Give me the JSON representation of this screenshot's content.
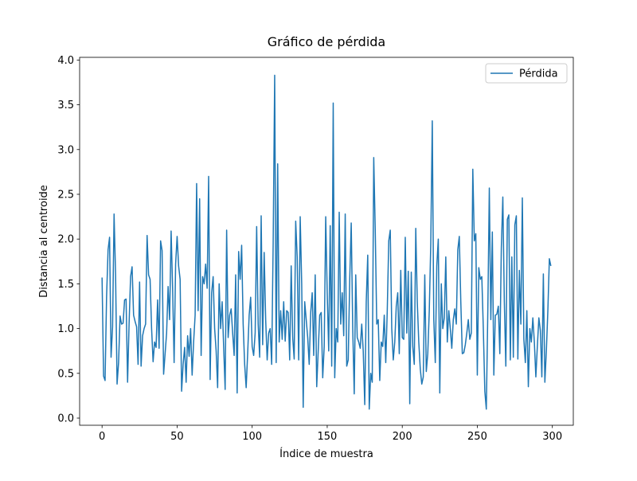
{
  "chart_data": {
    "type": "line",
    "title": "Gráfico de pérdida",
    "x_label": "Índice de muestra",
    "y_label": "Distancia al centroide",
    "x": [
      0,
      1,
      2,
      3,
      4,
      5,
      6,
      7,
      8,
      9,
      10,
      11,
      12,
      13,
      14,
      15,
      16,
      17,
      18,
      19,
      20,
      21,
      22,
      23,
      24,
      25,
      26,
      27,
      28,
      29,
      30,
      31,
      32,
      33,
      34,
      35,
      36,
      37,
      38,
      39,
      40,
      41,
      42,
      43,
      44,
      45,
      46,
      47,
      48,
      49,
      50,
      51,
      52,
      53,
      54,
      55,
      56,
      57,
      58,
      59,
      60,
      61,
      62,
      63,
      64,
      65,
      66,
      67,
      68,
      69,
      70,
      71,
      72,
      73,
      74,
      75,
      76,
      77,
      78,
      79,
      80,
      81,
      82,
      83,
      84,
      85,
      86,
      87,
      88,
      89,
      90,
      91,
      92,
      93,
      94,
      95,
      96,
      97,
      98,
      99,
      100,
      101,
      102,
      103,
      104,
      105,
      106,
      107,
      108,
      109,
      110,
      111,
      112,
      113,
      114,
      115,
      116,
      117,
      118,
      119,
      120,
      121,
      122,
      123,
      124,
      125,
      126,
      127,
      128,
      129,
      130,
      131,
      132,
      133,
      134,
      135,
      136,
      137,
      138,
      139,
      140,
      141,
      142,
      143,
      144,
      145,
      146,
      147,
      148,
      149,
      150,
      151,
      152,
      153,
      154,
      155,
      156,
      157,
      158,
      159,
      160,
      161,
      162,
      163,
      164,
      165,
      166,
      167,
      168,
      169,
      170,
      171,
      172,
      173,
      174,
      175,
      176,
      177,
      178,
      179,
      180,
      181,
      182,
      183,
      184,
      185,
      186,
      187,
      188,
      189,
      190,
      191,
      192,
      193,
      194,
      195,
      196,
      197,
      198,
      199,
      200,
      201,
      202,
      203,
      204,
      205,
      206,
      207,
      208,
      209,
      210,
      211,
      212,
      213,
      214,
      215,
      216,
      217,
      218,
      219,
      220,
      221,
      222,
      223,
      224,
      225,
      226,
      227,
      228,
      229,
      230,
      231,
      232,
      233,
      234,
      235,
      236,
      237,
      238,
      239,
      240,
      241,
      242,
      243,
      244,
      245,
      246,
      247,
      248,
      249,
      250,
      251,
      252,
      253,
      254,
      255,
      256,
      257,
      258,
      259,
      260,
      261,
      262,
      263,
      264,
      265,
      266,
      267,
      268,
      269,
      270,
      271,
      272,
      273,
      274,
      275,
      276,
      277,
      278,
      279,
      280,
      281,
      282,
      283,
      284,
      285,
      286,
      287,
      288,
      289,
      290,
      291,
      292,
      293,
      294,
      295,
      296,
      297,
      298,
      299
    ],
    "series": [
      {
        "name": "Pérdida",
        "color": "#1f77b4",
        "values": [
          1.57,
          0.47,
          0.42,
          1.35,
          1.88,
          2.02,
          0.68,
          1.02,
          2.28,
          1.6,
          0.38,
          0.62,
          1.14,
          1.05,
          1.06,
          1.32,
          1.33,
          0.4,
          1.05,
          1.58,
          1.69,
          1.15,
          1.08,
          1.02,
          0.6,
          1.52,
          0.58,
          0.92,
          1.0,
          1.05,
          2.04,
          1.6,
          1.55,
          1.0,
          0.63,
          0.85,
          0.79,
          1.32,
          0.78,
          1.98,
          1.87,
          0.49,
          0.72,
          0.95,
          1.47,
          1.1,
          2.09,
          1.45,
          0.62,
          1.72,
          2.03,
          1.7,
          1.55,
          0.3,
          0.6,
          0.79,
          0.4,
          0.92,
          0.69,
          1.0,
          0.48,
          0.85,
          1.15,
          2.62,
          1.2,
          2.45,
          0.7,
          1.58,
          1.5,
          1.72,
          1.45,
          2.7,
          0.43,
          1.4,
          1.58,
          1.0,
          0.75,
          0.34,
          1.5,
          1.0,
          1.3,
          0.8,
          0.32,
          2.1,
          0.9,
          1.15,
          1.22,
          0.95,
          0.7,
          1.6,
          0.28,
          1.86,
          1.55,
          1.93,
          1.05,
          0.6,
          0.34,
          0.72,
          1.15,
          1.35,
          0.8,
          0.7,
          0.95,
          2.14,
          1.05,
          0.68,
          2.26,
          0.82,
          1.85,
          1.1,
          0.65,
          0.95,
          1.0,
          0.6,
          1.96,
          3.83,
          0.62,
          2.84,
          0.85,
          1.2,
          0.88,
          1.3,
          0.86,
          1.2,
          1.18,
          0.65,
          1.7,
          0.9,
          0.66,
          2.2,
          1.8,
          0.65,
          2.25,
          1.5,
          0.12,
          1.3,
          1.1,
          0.9,
          0.6,
          1.18,
          1.4,
          0.7,
          1.6,
          0.35,
          0.75,
          1.15,
          1.18,
          0.45,
          0.8,
          2.25,
          1.4,
          0.75,
          2.15,
          0.58,
          3.52,
          0.45,
          1.0,
          0.85,
          2.3,
          1.05,
          1.4,
          0.92,
          2.28,
          0.58,
          0.65,
          1.55,
          2.18,
          1.0,
          0.27,
          1.6,
          0.9,
          0.85,
          0.78,
          1.05,
          0.75,
          0.15,
          1.3,
          1.82,
          0.1,
          0.5,
          0.4,
          2.91,
          2.1,
          1.05,
          1.1,
          0.42,
          0.85,
          0.8,
          1.15,
          0.62,
          1.2,
          1.98,
          2.1,
          1.0,
          0.65,
          0.85,
          1.25,
          1.4,
          0.72,
          1.65,
          0.9,
          0.88,
          2.02,
          0.95,
          1.64,
          0.16,
          1.63,
          0.8,
          0.6,
          2.12,
          1.3,
          0.85,
          0.55,
          0.38,
          0.46,
          1.6,
          0.52,
          0.72,
          1.2,
          1.95,
          3.32,
          1.1,
          0.62,
          1.7,
          2.0,
          0.28,
          1.5,
          1.0,
          1.12,
          1.8,
          0.85,
          1.2,
          1.0,
          0.78,
          1.1,
          1.22,
          1.05,
          1.88,
          2.03,
          1.3,
          0.72,
          0.73,
          0.82,
          0.95,
          1.1,
          0.88,
          0.95,
          2.78,
          1.98,
          2.06,
          0.48,
          1.68,
          1.55,
          1.58,
          1.0,
          0.3,
          0.1,
          1.2,
          2.57,
          1.1,
          2.08,
          0.48,
          1.15,
          1.16,
          1.25,
          0.72,
          1.9,
          2.47,
          1.3,
          0.58,
          2.22,
          2.27,
          0.65,
          1.8,
          0.68,
          2.16,
          2.26,
          0.66,
          1.65,
          1.05,
          2.46,
          0.88,
          0.62,
          1.2,
          0.35,
          1.0,
          0.85,
          1.12,
          0.85,
          0.46,
          0.8,
          1.12,
          0.98,
          0.46,
          1.61,
          0.4,
          0.75,
          1.2,
          1.78,
          1.7
        ]
      }
    ],
    "xlim": [
      -14.95,
      313.95
    ],
    "xticks": [
      0,
      50,
      100,
      150,
      200,
      250,
      300
    ],
    "ylim": [
      -0.08,
      4.03
    ],
    "yticks": [
      {
        "value": 0,
        "label": "0.0"
      },
      0.5,
      {
        "value": 1,
        "label": "1.0"
      },
      1.5,
      {
        "value": 2,
        "label": "2.0"
      },
      2.5,
      {
        "value": 3,
        "label": "3.0"
      },
      3.5,
      {
        "value": 4,
        "label": "4.0"
      }
    ],
    "legend": "upper right"
  }
}
